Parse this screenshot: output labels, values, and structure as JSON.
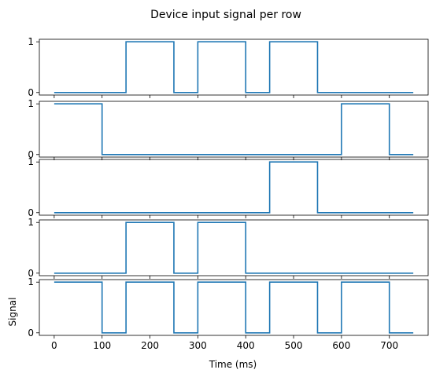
{
  "figure": {
    "title": "Device input signal per row"
  },
  "chart_data": {
    "type": "line",
    "title": "Device input signal per row",
    "xlabel": "Time (ms)",
    "ylabel": "Signal",
    "xlim": [
      -31,
      781
    ],
    "ylim": [
      -0.05,
      1.05
    ],
    "x_ticks": [
      0,
      100,
      200,
      300,
      400,
      500,
      600,
      700
    ],
    "y_ticks": [
      0,
      1
    ],
    "grid": false,
    "line_color": "#1f77b4",
    "step": "post",
    "rows": [
      {
        "x": [
          0,
          150,
          250,
          300,
          400,
          450,
          550,
          750
        ],
        "y": [
          0,
          1,
          0,
          1,
          0,
          1,
          0,
          0
        ]
      },
      {
        "x": [
          0,
          100,
          600,
          700,
          750
        ],
        "y": [
          1,
          0,
          1,
          0,
          0
        ]
      },
      {
        "x": [
          0,
          450,
          550,
          750
        ],
        "y": [
          0,
          1,
          0,
          0
        ]
      },
      {
        "x": [
          0,
          150,
          250,
          300,
          400,
          750
        ],
        "y": [
          0,
          1,
          0,
          1,
          0,
          0
        ]
      },
      {
        "x": [
          0,
          100,
          150,
          250,
          300,
          400,
          450,
          550,
          600,
          700,
          750
        ],
        "y": [
          1,
          0,
          1,
          0,
          1,
          0,
          1,
          0,
          1,
          0,
          0
        ]
      }
    ]
  }
}
